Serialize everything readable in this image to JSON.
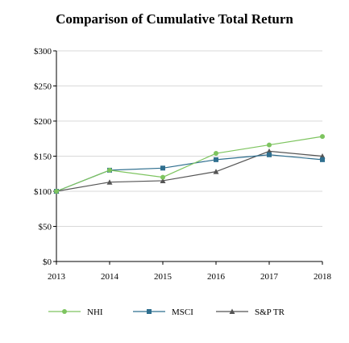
{
  "chart_data": {
    "type": "line",
    "title": "Comparison of Cumulative Total Return",
    "xlabel": "",
    "ylabel": "",
    "x": [
      "2013",
      "2014",
      "2015",
      "2016",
      "2017",
      "2018"
    ],
    "ylim": [
      0,
      300
    ],
    "yticks": [
      0,
      50,
      100,
      150,
      200,
      250,
      300
    ],
    "ytick_labels": [
      "$0",
      "$50",
      "$100",
      "$150",
      "$200",
      "$250",
      "$300"
    ],
    "grid": true,
    "legend_position": "bottom",
    "series": [
      {
        "name": "NHI",
        "values": [
          100,
          130,
          120,
          154,
          166,
          178
        ],
        "color": "#7dc45f",
        "marker": "circle"
      },
      {
        "name": "MSCI",
        "values": [
          100,
          130,
          133,
          145,
          152,
          145
        ],
        "color": "#2f6f8f",
        "marker": "square"
      },
      {
        "name": "S&P TR",
        "values": [
          100,
          113,
          115,
          128,
          157,
          150
        ],
        "color": "#555555",
        "marker": "triangle"
      }
    ]
  }
}
